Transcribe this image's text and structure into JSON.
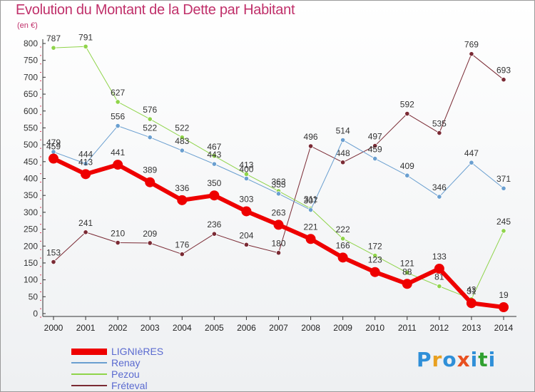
{
  "title": "Evolution du Montant de la Dette par Habitant",
  "subtitle": "(en €)",
  "logo": {
    "text": "Proxiti",
    "colors": [
      "#2f8fd8",
      "#e8a020",
      "#2f8fd8",
      "#e85020",
      "#2f8fd8",
      "#30a030",
      "#2f8fd8"
    ]
  },
  "chart_data": {
    "type": "line",
    "title": "Evolution du Montant de la Dette par Habitant",
    "ylabel": "(en €)",
    "xlabel": "",
    "x": [
      "2000",
      "2001",
      "2002",
      "2003",
      "2004",
      "2005",
      "2006",
      "2007",
      "2008",
      "2009",
      "2010",
      "2011",
      "2012",
      "2013",
      "2014"
    ],
    "ylim": [
      0,
      800
    ],
    "yticks": [
      0,
      50,
      100,
      150,
      200,
      250,
      300,
      350,
      400,
      450,
      500,
      550,
      600,
      650,
      700,
      750,
      800
    ],
    "grid": "off",
    "legend": "bottom-left",
    "series": [
      {
        "name": "Fréteval",
        "color": "#7a2a34",
        "width": 1,
        "values": [
          153,
          241,
          210,
          209,
          176,
          236,
          204,
          180,
          496,
          448,
          497,
          592,
          535,
          769,
          693
        ]
      },
      {
        "name": "Pezou",
        "color": "#8fd44a",
        "width": 1,
        "values": [
          787,
          791,
          627,
          576,
          522,
          467,
          413,
          363,
          311,
          222,
          172,
          121,
          81,
          43,
          245
        ]
      },
      {
        "name": "Renay",
        "color": "#6a9fd0",
        "width": 1,
        "values": [
          479,
          444,
          556,
          522,
          483,
          443,
          400,
          355,
          307,
          514,
          459,
          409,
          346,
          447,
          371
        ]
      },
      {
        "name": "LIGNIèRES",
        "color": "#ee0000",
        "width": 6,
        "values": [
          459,
          413,
          441,
          389,
          336,
          350,
          303,
          263,
          221,
          166,
          123,
          88,
          133,
          31,
          19
        ]
      }
    ]
  }
}
